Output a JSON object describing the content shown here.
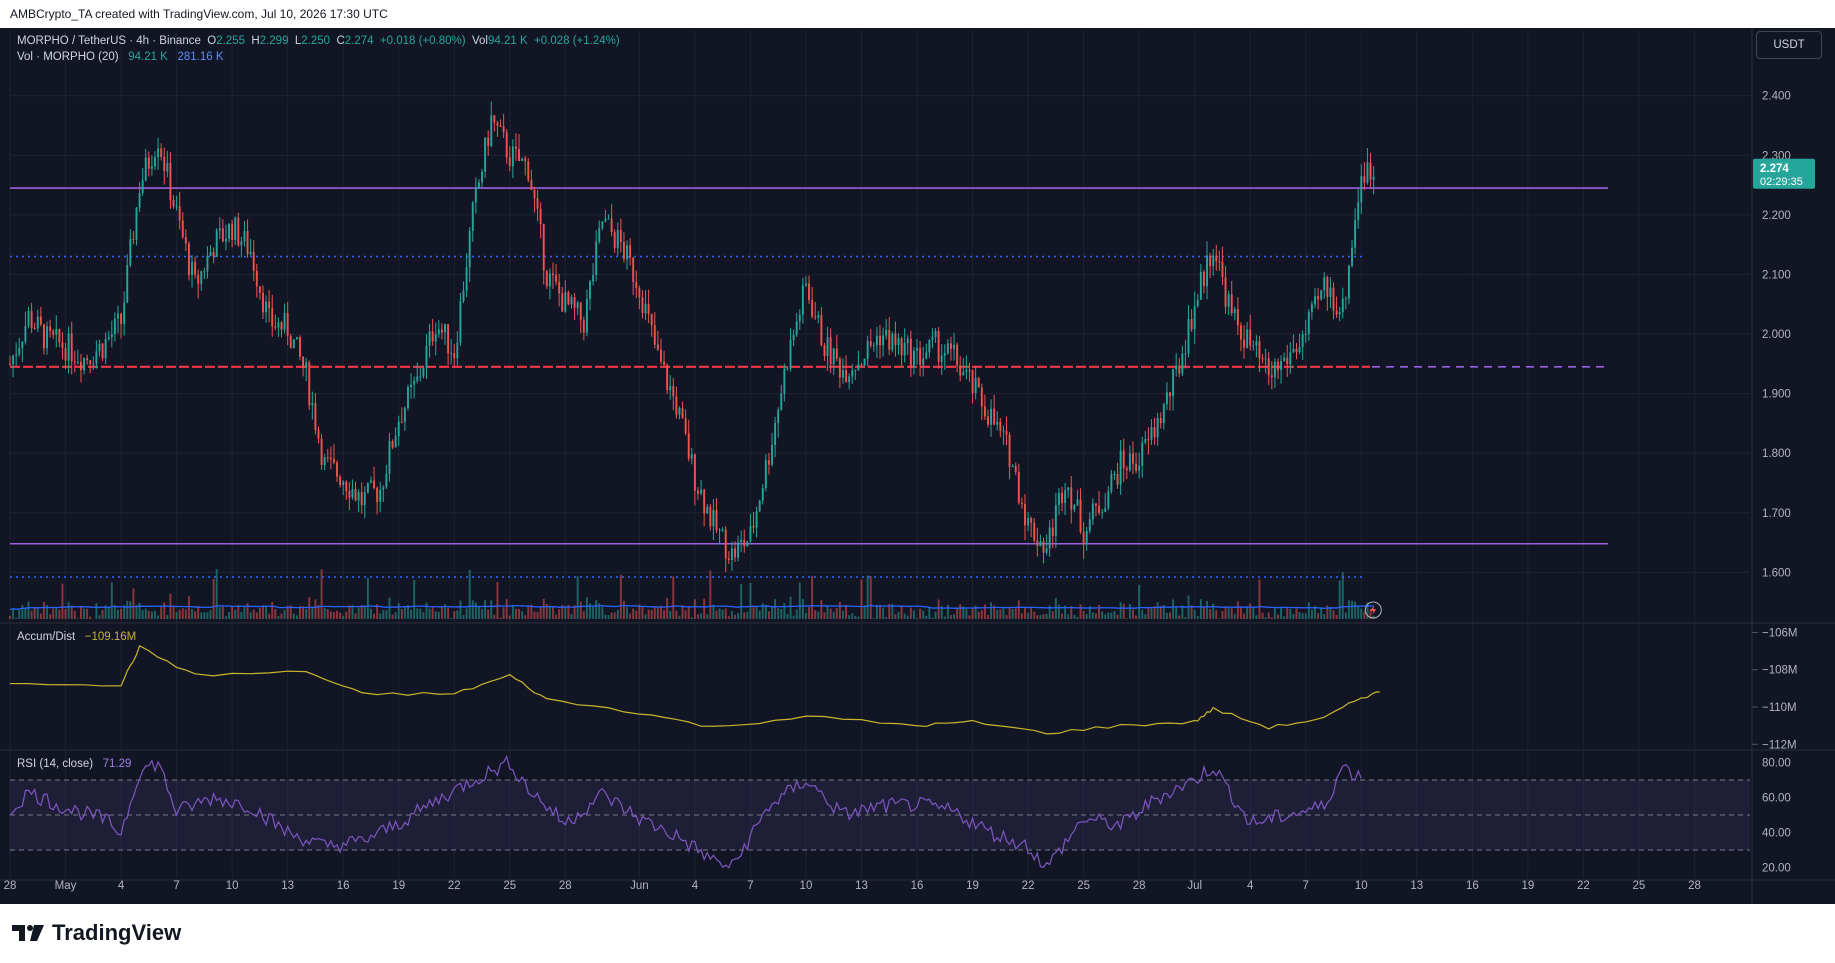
{
  "header": {
    "attribution": "AMBCrypto_TA created with TradingView.com, Jul 10, 2026 17:30 UTC"
  },
  "legend": {
    "symbol": "MORPHO / TetherUS · 4h · Binance",
    "o_label": "O",
    "o": "2.255",
    "h_label": "H",
    "h": "2.299",
    "l_label": "L",
    "l": "2.250",
    "c_label": "C",
    "c": "2.274",
    "change": "+0.018 (+0.80%)",
    "vol_label": "Vol",
    "vol": "94.21 K",
    "vol_change": "+0.028 (+1.24%)",
    "vol_ind": "Vol · MORPHO (20)",
    "vol_ind_v1": "94.21 K",
    "vol_ind_v2": "281.16 K",
    "ad_label": "Accum/Dist",
    "ad_value": "−109.16M",
    "rsi_label": "RSI (14, close)",
    "rsi_value": "71.29"
  },
  "currency_button": "USDT",
  "price_badge": {
    "price": "2.274",
    "countdown": "02:29:35"
  },
  "footer": {
    "brand": "TradingView"
  },
  "colors": {
    "background": "#121624",
    "up": "#26a69a",
    "down": "#ef5350",
    "level": "#9c5fe0",
    "support": "#f23645",
    "dotted": "#2962ff",
    "volume_ma": "#2962ff",
    "ad_line": "#c9b52c",
    "rsi_line": "#7e57c2"
  },
  "chart_data": [
    {
      "type": "candlestick",
      "symbol": "MORPHO/USDT",
      "timeframe": "4h",
      "yticks": [
        "2.400",
        "2.300",
        "2.200",
        "2.100",
        "2.000",
        "1.900",
        "1.800",
        "1.700",
        "1.600"
      ],
      "ylim": [
        1.52,
        2.46
      ],
      "xticks": [
        "28",
        "May",
        "4",
        "7",
        "10",
        "13",
        "16",
        "19",
        "22",
        "25",
        "28",
        "Jun",
        "4",
        "7",
        "10",
        "13",
        "16",
        "19",
        "22",
        "25",
        "28",
        "Jul",
        "4",
        "7",
        "10",
        "13",
        "16",
        "19",
        "22",
        "25",
        "28"
      ],
      "xlim": [
        "2026-04-28",
        "2026-07-31"
      ],
      "horizontal_levels": [
        {
          "price": 2.245,
          "style": "solid",
          "color": "#9c5fe0"
        },
        {
          "price": 2.13,
          "style": "dotted",
          "color": "#2962ff"
        },
        {
          "price": 1.945,
          "style": "solid",
          "color": "#f23645"
        },
        {
          "price": 1.945,
          "style": "dashed",
          "color": "#9c5fe0"
        },
        {
          "price": 1.648,
          "style": "solid",
          "color": "#9c5fe0"
        },
        {
          "price": 1.592,
          "style": "dotted",
          "color": "#2962ff"
        }
      ],
      "close_path": [
        [
          "2026-04-28",
          1.95
        ],
        [
          "2026-04-29",
          2.03
        ],
        [
          "2026-04-30",
          1.99
        ],
        [
          "2026-05-01",
          1.98
        ],
        [
          "2026-05-02",
          1.96
        ],
        [
          "2026-05-03",
          1.98
        ],
        [
          "2026-05-04",
          2.02
        ],
        [
          "2026-05-05",
          2.25
        ],
        [
          "2026-05-06",
          2.33
        ],
        [
          "2026-05-07",
          2.2
        ],
        [
          "2026-05-08",
          2.08
        ],
        [
          "2026-05-09",
          2.15
        ],
        [
          "2026-05-10",
          2.18
        ],
        [
          "2026-05-11",
          2.14
        ],
        [
          "2026-05-12",
          2.02
        ],
        [
          "2026-05-13",
          2.01
        ],
        [
          "2026-05-14",
          1.93
        ],
        [
          "2026-05-15",
          1.78
        ],
        [
          "2026-05-16",
          1.76
        ],
        [
          "2026-05-17",
          1.72
        ],
        [
          "2026-05-18",
          1.74
        ],
        [
          "2026-05-19",
          1.86
        ],
        [
          "2026-05-20",
          1.92
        ],
        [
          "2026-05-21",
          2.02
        ],
        [
          "2026-05-22",
          1.97
        ],
        [
          "2026-05-23",
          2.2
        ],
        [
          "2026-05-24",
          2.36
        ],
        [
          "2026-05-25",
          2.3
        ],
        [
          "2026-05-26",
          2.28
        ],
        [
          "2026-05-27",
          2.1
        ],
        [
          "2026-05-28",
          2.05
        ],
        [
          "2026-05-29",
          2.02
        ],
        [
          "2026-05-30",
          2.19
        ],
        [
          "2026-05-31",
          2.15
        ],
        [
          "2026-06-01",
          2.08
        ],
        [
          "2026-06-02",
          1.96
        ],
        [
          "2026-06-03",
          1.88
        ],
        [
          "2026-06-04",
          1.76
        ],
        [
          "2026-06-05",
          1.68
        ],
        [
          "2026-06-06",
          1.63
        ],
        [
          "2026-06-07",
          1.66
        ],
        [
          "2026-06-08",
          1.8
        ],
        [
          "2026-06-09",
          1.96
        ],
        [
          "2026-06-10",
          2.08
        ],
        [
          "2026-06-11",
          1.98
        ],
        [
          "2026-06-12",
          1.94
        ],
        [
          "2026-06-13",
          1.96
        ],
        [
          "2026-06-14",
          2.0
        ],
        [
          "2026-06-15",
          1.98
        ],
        [
          "2026-06-16",
          1.96
        ],
        [
          "2026-06-17",
          1.98
        ],
        [
          "2026-06-18",
          1.96
        ],
        [
          "2026-06-19",
          1.91
        ],
        [
          "2026-06-20",
          1.86
        ],
        [
          "2026-06-21",
          1.8
        ],
        [
          "2026-06-22",
          1.68
        ],
        [
          "2026-06-23",
          1.64
        ],
        [
          "2026-06-24",
          1.76
        ],
        [
          "2026-06-25",
          1.67
        ],
        [
          "2026-06-26",
          1.72
        ],
        [
          "2026-06-27",
          1.78
        ],
        [
          "2026-06-28",
          1.79
        ],
        [
          "2026-06-29",
          1.85
        ],
        [
          "2026-06-30",
          1.93
        ],
        [
          "2026-07-01",
          2.05
        ],
        [
          "2026-07-02",
          2.15
        ],
        [
          "2026-07-03",
          2.03
        ],
        [
          "2026-07-04",
          1.98
        ],
        [
          "2026-07-05",
          1.93
        ],
        [
          "2026-07-06",
          1.96
        ],
        [
          "2026-07-07",
          2.0
        ],
        [
          "2026-07-08",
          2.08
        ],
        [
          "2026-07-09",
          2.04
        ],
        [
          "2026-07-10",
          2.27
        ]
      ]
    },
    {
      "type": "line",
      "name": "Accum/Dist",
      "yticks": [
        "−106M",
        "−108M",
        "−110M",
        "−112M"
      ],
      "ylim": [
        -112.2,
        -105.6
      ],
      "x": [
        "2026-04-28",
        "2026-05-04",
        "2026-05-05",
        "2026-05-08",
        "2026-05-14",
        "2026-05-17",
        "2026-05-22",
        "2026-05-25",
        "2026-05-27",
        "2026-06-01",
        "2026-06-05",
        "2026-06-10",
        "2026-06-16",
        "2026-06-19",
        "2026-06-23",
        "2026-06-27",
        "2026-07-01",
        "2026-07-02",
        "2026-07-05",
        "2026-07-08",
        "2026-07-10",
        "2026-07-11"
      ],
      "values": [
        -108.7,
        -108.8,
        -106.8,
        -108.3,
        -108.1,
        -109.3,
        -109.3,
        -108.3,
        -109.6,
        -110.3,
        -111.1,
        -110.5,
        -111.0,
        -110.8,
        -111.4,
        -111.0,
        -110.8,
        -110.1,
        -111.1,
        -110.6,
        -109.5,
        -109.2
      ]
    },
    {
      "type": "line",
      "name": "RSI (14, close)",
      "yticks": [
        "80.00",
        "60.00",
        "40.00",
        "20.00"
      ],
      "ylim": [
        14,
        86
      ],
      "bands": {
        "upper": 70,
        "middle": 50,
        "lower": 30
      },
      "x": [
        "2026-04-28",
        "2026-04-29",
        "2026-05-01",
        "2026-05-03",
        "2026-05-04",
        "2026-05-05",
        "2026-05-06",
        "2026-05-07",
        "2026-05-09",
        "2026-05-11",
        "2026-05-13",
        "2026-05-15",
        "2026-05-17",
        "2026-05-19",
        "2026-05-21",
        "2026-05-23",
        "2026-05-25",
        "2026-05-26",
        "2026-05-28",
        "2026-05-30",
        "2026-06-01",
        "2026-06-03",
        "2026-06-05",
        "2026-06-06",
        "2026-06-08",
        "2026-06-10",
        "2026-06-12",
        "2026-06-14",
        "2026-06-16",
        "2026-06-18",
        "2026-06-20",
        "2026-06-22",
        "2026-06-23",
        "2026-06-25",
        "2026-06-27",
        "2026-06-29",
        "2026-07-01",
        "2026-07-02",
        "2026-07-04",
        "2026-07-06",
        "2026-07-08",
        "2026-07-09",
        "2026-07-10"
      ],
      "values": [
        52,
        63,
        54,
        48,
        40,
        75,
        80,
        52,
        60,
        55,
        40,
        32,
        35,
        45,
        58,
        70,
        80,
        65,
        45,
        62,
        48,
        38,
        24,
        20,
        55,
        70,
        50,
        55,
        56,
        52,
        40,
        32,
        20,
        48,
        44,
        60,
        70,
        78,
        45,
        50,
        55,
        78,
        71
      ]
    }
  ]
}
